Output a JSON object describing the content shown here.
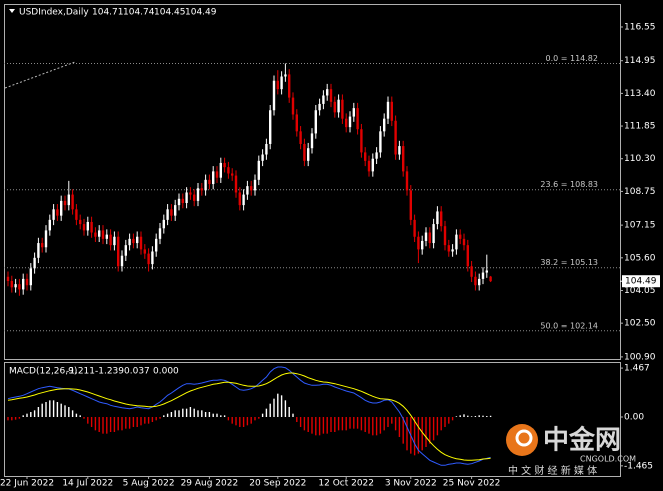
{
  "chart_data": {
    "type": "candlestick",
    "symbol": "USDIndex,Daily",
    "up_color": "#ffffff",
    "down_color": "#e00000",
    "ylim": [
      100.8,
      117.64
    ],
    "yticks": [
      116.55,
      114.95,
      {
        "value": 113.4,
        "label": "113.40"
      },
      111.85,
      {
        "value": 110.3,
        "label": "110.30"
      },
      108.75,
      107.15,
      {
        "value": 105.6,
        "label": "105.60"
      },
      104.05,
      {
        "value": 102.5,
        "label": "102.50"
      },
      {
        "value": 100.9,
        "label": "100.90"
      }
    ],
    "fib_levels": [
      {
        "value": 114.82,
        "label": "0.0 = 114.82"
      },
      {
        "value": 108.83,
        "label": "23.6 = 108.83"
      },
      {
        "value": 105.13,
        "label": "38.2 = 105.13"
      },
      {
        "value": 102.14,
        "label": "50.0 = 102.14"
      }
    ],
    "xticks": [
      {
        "value": 5,
        "label": "22 Jun 2022"
      },
      {
        "value": 21,
        "label": "14 Jul 2022"
      },
      {
        "value": 37,
        "label": "5 Aug 2022"
      },
      {
        "value": 53,
        "label": "29 Aug 2022"
      },
      {
        "value": 71,
        "label": "20 Sep 2022"
      },
      {
        "value": 89,
        "label": "12 Oct 2022"
      },
      {
        "value": 106,
        "label": "3 Nov 2022"
      },
      {
        "value": 122,
        "label": "25 Nov 2022"
      }
    ],
    "ohlc": [
      [
        104.7,
        104.95,
        104.25,
        104.5
      ],
      [
        104.5,
        104.75,
        103.95,
        104.2
      ],
      [
        104.2,
        104.6,
        103.95,
        104.35
      ],
      [
        104.35,
        104.6,
        103.8,
        104.1
      ],
      [
        104.1,
        104.85,
        103.85,
        104.6
      ],
      [
        104.6,
        104.85,
        104.05,
        104.3
      ],
      [
        104.3,
        105.35,
        104.05,
        105.1
      ],
      [
        105.1,
        105.85,
        104.85,
        105.6
      ],
      [
        105.6,
        106.55,
        105.35,
        106.3
      ],
      [
        106.3,
        106.55,
        105.85,
        106.1
      ],
      [
        106.1,
        107.15,
        105.85,
        106.9
      ],
      [
        106.9,
        107.65,
        106.65,
        107.4
      ],
      [
        107.4,
        108.15,
        107.15,
        107.9
      ],
      [
        107.9,
        108.15,
        107.35,
        107.6
      ],
      [
        107.6,
        108.55,
        107.35,
        108.3
      ],
      [
        108.3,
        108.55,
        107.85,
        108.1
      ],
      [
        108.1,
        109.25,
        107.85,
        108.6
      ],
      [
        108.6,
        108.85,
        107.65,
        107.9
      ],
      [
        107.9,
        108.15,
        107.15,
        107.4
      ],
      [
        107.4,
        107.65,
        106.95,
        107.2
      ],
      [
        107.2,
        107.45,
        106.65,
        106.9
      ],
      [
        106.9,
        107.55,
        106.65,
        107.3
      ],
      [
        107.3,
        107.55,
        106.55,
        106.8
      ],
      [
        106.8,
        107.05,
        106.35,
        106.6
      ],
      [
        106.6,
        107.15,
        106.35,
        106.9
      ],
      [
        106.9,
        107.15,
        106.25,
        106.5
      ],
      [
        106.5,
        106.95,
        106.25,
        106.7
      ],
      [
        106.7,
        106.95,
        105.95,
        106.2
      ],
      [
        106.2,
        106.85,
        105.95,
        106.6
      ],
      [
        106.6,
        106.85,
        104.95,
        105.2
      ],
      [
        105.2,
        105.95,
        104.95,
        105.7
      ],
      [
        105.7,
        106.45,
        105.45,
        106.2
      ],
      [
        106.2,
        106.75,
        105.95,
        106.5
      ],
      [
        106.5,
        106.75,
        106.05,
        106.3
      ],
      [
        106.3,
        106.85,
        106.05,
        106.6
      ],
      [
        106.6,
        106.85,
        105.75,
        106.0
      ],
      [
        106.0,
        106.25,
        105.55,
        105.8
      ],
      [
        105.8,
        106.05,
        104.95,
        105.3
      ],
      [
        105.3,
        106.15,
        105.05,
        105.9
      ],
      [
        105.9,
        106.75,
        105.65,
        106.5
      ],
      [
        106.5,
        107.25,
        106.25,
        107.0
      ],
      [
        107.0,
        107.65,
        106.75,
        107.4
      ],
      [
        107.4,
        108.15,
        107.15,
        107.9
      ],
      [
        107.9,
        108.15,
        107.35,
        107.6
      ],
      [
        107.6,
        108.35,
        107.35,
        108.1
      ],
      [
        108.1,
        108.65,
        107.85,
        108.4
      ],
      [
        108.4,
        108.65,
        107.95,
        108.2
      ],
      [
        108.2,
        108.95,
        107.95,
        108.7
      ],
      [
        108.7,
        108.95,
        108.35,
        108.6
      ],
      [
        108.6,
        108.85,
        108.05,
        108.3
      ],
      [
        108.3,
        109.15,
        108.05,
        108.9
      ],
      [
        108.9,
        109.15,
        108.55,
        108.8
      ],
      [
        108.8,
        109.55,
        108.55,
        109.3
      ],
      [
        109.3,
        109.55,
        108.85,
        109.1
      ],
      [
        109.1,
        109.95,
        108.85,
        109.7
      ],
      [
        109.7,
        109.95,
        109.15,
        109.4
      ],
      [
        109.4,
        110.35,
        109.15,
        110.1
      ],
      [
        110.1,
        110.35,
        109.65,
        109.9
      ],
      [
        109.9,
        110.15,
        109.35,
        109.6
      ],
      [
        109.6,
        109.85,
        109.25,
        109.5
      ],
      [
        109.5,
        109.75,
        108.45,
        108.7
      ],
      [
        108.7,
        108.95,
        107.85,
        108.1
      ],
      [
        108.1,
        108.85,
        107.85,
        108.6
      ],
      [
        108.6,
        109.25,
        108.35,
        109.0
      ],
      [
        109.0,
        109.25,
        108.55,
        108.8
      ],
      [
        108.8,
        109.55,
        108.55,
        109.3
      ],
      [
        109.3,
        110.45,
        109.05,
        110.2
      ],
      [
        110.2,
        110.75,
        109.95,
        110.5
      ],
      [
        110.5,
        111.25,
        110.25,
        111.0
      ],
      [
        111.0,
        112.85,
        110.75,
        112.6
      ],
      [
        112.6,
        114.25,
        112.35,
        114.0
      ],
      [
        114.0,
        114.5,
        113.35,
        113.6
      ],
      [
        113.6,
        114.45,
        113.35,
        114.2
      ],
      [
        114.2,
        114.82,
        113.95,
        114.3
      ],
      [
        114.3,
        114.55,
        112.95,
        113.2
      ],
      [
        113.2,
        113.45,
        112.15,
        112.4
      ],
      [
        112.4,
        112.65,
        111.35,
        111.6
      ],
      [
        111.6,
        111.85,
        110.75,
        111.0
      ],
      [
        111.0,
        111.25,
        109.95,
        110.2
      ],
      [
        110.2,
        111.05,
        109.95,
        110.8
      ],
      [
        110.8,
        111.75,
        110.55,
        111.5
      ],
      [
        111.5,
        112.85,
        111.25,
        112.6
      ],
      [
        112.6,
        113.15,
        112.35,
        112.9
      ],
      [
        112.9,
        113.55,
        112.65,
        113.3
      ],
      [
        113.3,
        113.85,
        113.05,
        113.6
      ],
      [
        113.6,
        113.85,
        112.75,
        113.0
      ],
      [
        113.0,
        113.25,
        112.25,
        112.5
      ],
      [
        112.5,
        113.35,
        112.25,
        113.1
      ],
      [
        113.1,
        113.35,
        111.95,
        112.2
      ],
      [
        112.2,
        112.45,
        111.55,
        111.8
      ],
      [
        111.8,
        112.55,
        111.55,
        112.3
      ],
      [
        112.3,
        112.95,
        112.05,
        112.7
      ],
      [
        112.7,
        112.95,
        111.45,
        111.7
      ],
      [
        111.7,
        111.95,
        110.35,
        110.6
      ],
      [
        110.6,
        110.85,
        109.95,
        110.2
      ],
      [
        110.2,
        110.45,
        109.45,
        109.7
      ],
      [
        109.7,
        110.55,
        109.45,
        110.3
      ],
      [
        110.3,
        110.85,
        110.05,
        110.6
      ],
      [
        110.6,
        111.85,
        110.35,
        111.6
      ],
      [
        111.6,
        112.45,
        111.35,
        112.2
      ],
      [
        112.2,
        113.25,
        111.95,
        113.0
      ],
      [
        113.0,
        113.25,
        111.85,
        112.1
      ],
      [
        112.1,
        112.35,
        110.25,
        110.5
      ],
      [
        110.5,
        111.15,
        110.25,
        110.9
      ],
      [
        110.9,
        111.15,
        109.45,
        109.7
      ],
      [
        109.7,
        109.95,
        108.55,
        108.8
      ],
      [
        108.8,
        109.05,
        107.15,
        107.4
      ],
      [
        107.4,
        107.65,
        106.35,
        106.6
      ],
      [
        106.6,
        106.85,
        105.35,
        106.0
      ],
      [
        106.0,
        106.65,
        105.75,
        106.4
      ],
      [
        106.4,
        107.05,
        106.15,
        106.8
      ],
      [
        106.8,
        107.05,
        106.05,
        106.3
      ],
      [
        106.3,
        107.45,
        106.05,
        107.2
      ],
      [
        107.2,
        108.05,
        106.95,
        107.8
      ],
      [
        107.8,
        108.05,
        106.85,
        107.1
      ],
      [
        107.1,
        107.35,
        105.95,
        106.2
      ],
      [
        106.2,
        106.45,
        105.65,
        105.9
      ],
      [
        105.9,
        106.25,
        105.65,
        106.0
      ],
      [
        106.0,
        106.95,
        105.75,
        106.7
      ],
      [
        106.7,
        106.95,
        106.25,
        106.5
      ],
      [
        106.5,
        106.75,
        105.95,
        106.2
      ],
      [
        106.2,
        106.45,
        104.95,
        105.2
      ],
      [
        105.2,
        105.45,
        104.45,
        104.7
      ],
      [
        104.7,
        104.95,
        104.05,
        104.3
      ],
      [
        104.3,
        104.85,
        104.05,
        104.6
      ],
      [
        104.6,
        105.15,
        104.35,
        104.9
      ],
      [
        104.9,
        105.75,
        104.65,
        105.0
      ],
      [
        104.71,
        104.74,
        104.45,
        104.49
      ]
    ],
    "indicator": {
      "type": "macd",
      "title": "MACD(12,26,9)",
      "readout": [
        -1.211,
        -1.239,
        0.037,
        {
          "value": 0,
          "label": "0.000"
        }
      ],
      "ylim": [
        -1.77,
        1.65
      ],
      "yticks": [
        1.467,
        {
          "value": 0,
          "label": "0.00"
        },
        -1.465
      ],
      "main": {
        "color": "#2f5bff",
        "values": [
          0.55,
          0.58,
          0.6,
          0.62,
          0.65,
          0.7,
          0.75,
          0.8,
          0.85,
          0.88,
          0.9,
          0.92,
          0.9,
          0.88,
          0.86,
          0.85,
          0.84,
          0.8,
          0.75,
          0.7,
          0.65,
          0.6,
          0.55,
          0.5,
          0.45,
          0.42,
          0.4,
          0.35,
          0.32,
          0.3,
          0.28,
          0.26,
          0.25,
          0.27,
          0.3,
          0.28,
          0.26,
          0.25,
          0.3,
          0.38,
          0.45,
          0.55,
          0.65,
          0.72,
          0.8,
          0.88,
          0.95,
          1.0,
          1.0,
          0.98,
          1.0,
          1.02,
          1.05,
          1.08,
          1.1,
          1.1,
          1.12,
          1.1,
          1.05,
          0.98,
          0.9,
          0.82,
          0.8,
          0.82,
          0.85,
          0.9,
          1.0,
          1.1,
          1.2,
          1.35,
          1.45,
          1.5,
          1.5,
          1.48,
          1.4,
          1.3,
          1.2,
          1.1,
          1.02,
          0.98,
          0.95,
          0.95,
          0.96,
          0.98,
          0.98,
          0.95,
          0.9,
          0.86,
          0.82,
          0.78,
          0.75,
          0.72,
          0.65,
          0.58,
          0.5,
          0.45,
          0.42,
          0.42,
          0.45,
          0.5,
          0.52,
          0.45,
          0.3,
          0.15,
          -0.05,
          -0.3,
          -0.55,
          -0.8,
          -1.0,
          -1.1,
          -1.2,
          -1.3,
          -1.35,
          -1.4,
          -1.45,
          -1.45,
          -1.42,
          -1.4,
          -1.38,
          -1.38,
          -1.4,
          -1.42,
          -1.4,
          -1.36,
          -1.32,
          -1.27,
          -1.24,
          -1.211
        ]
      },
      "signal": {
        "color": "#ffff00",
        "values": [
          0.5,
          0.52,
          0.54,
          0.56,
          0.58,
          0.6,
          0.63,
          0.66,
          0.7,
          0.73,
          0.76,
          0.79,
          0.81,
          0.83,
          0.84,
          0.85,
          0.85,
          0.84,
          0.83,
          0.81,
          0.78,
          0.75,
          0.71,
          0.67,
          0.63,
          0.59,
          0.55,
          0.52,
          0.48,
          0.45,
          0.42,
          0.39,
          0.37,
          0.35,
          0.34,
          0.33,
          0.32,
          0.31,
          0.31,
          0.32,
          0.35,
          0.39,
          0.44,
          0.49,
          0.55,
          0.61,
          0.67,
          0.73,
          0.78,
          0.82,
          0.86,
          0.89,
          0.92,
          0.95,
          0.98,
          1.0,
          1.02,
          1.04,
          1.04,
          1.03,
          1.01,
          0.98,
          0.95,
          0.93,
          0.92,
          0.92,
          0.93,
          0.96,
          1.0,
          1.06,
          1.13,
          1.2,
          1.26,
          1.3,
          1.32,
          1.32,
          1.3,
          1.27,
          1.23,
          1.18,
          1.14,
          1.1,
          1.07,
          1.05,
          1.04,
          1.02,
          1.0,
          0.97,
          0.94,
          0.91,
          0.88,
          0.85,
          0.81,
          0.77,
          0.72,
          0.67,
          0.62,
          0.58,
          0.55,
          0.54,
          0.53,
          0.51,
          0.47,
          0.41,
          0.32,
          0.2,
          0.05,
          -0.12,
          -0.3,
          -0.46,
          -0.6,
          -0.74,
          -0.86,
          -0.97,
          -1.06,
          -1.13,
          -1.18,
          -1.22,
          -1.25,
          -1.27,
          -1.29,
          -1.3,
          -1.3,
          -1.29,
          -1.28,
          -1.26,
          -1.25,
          -1.239
        ]
      },
      "histogram": {
        "up_color": "#ffffff",
        "down_color": "#e00000",
        "values": [
          -0.1,
          -0.1,
          -0.08,
          -0.05,
          0.05,
          0.1,
          0.15,
          0.2,
          0.3,
          0.4,
          0.45,
          0.5,
          0.5,
          0.45,
          0.4,
          0.35,
          0.3,
          0.2,
          0.1,
          0.05,
          -0.05,
          -0.2,
          -0.3,
          -0.4,
          -0.45,
          -0.5,
          -0.5,
          -0.45,
          -0.45,
          -0.4,
          -0.4,
          -0.35,
          -0.35,
          -0.3,
          -0.3,
          -0.25,
          -0.2,
          -0.2,
          -0.15,
          -0.1,
          -0.05,
          0.05,
          0.1,
          0.15,
          0.2,
          0.2,
          0.25,
          0.25,
          0.3,
          0.25,
          0.2,
          0.2,
          0.15,
          0.15,
          0.1,
          0.1,
          0.05,
          0.05,
          -0.1,
          -0.2,
          -0.25,
          -0.3,
          -0.3,
          -0.25,
          -0.2,
          -0.1,
          -0.05,
          0.1,
          0.25,
          0.4,
          0.55,
          0.7,
          0.65,
          0.5,
          0.3,
          0.1,
          -0.15,
          -0.3,
          -0.4,
          -0.45,
          -0.5,
          -0.55,
          -0.55,
          -0.5,
          -0.5,
          -0.45,
          -0.45,
          -0.4,
          -0.4,
          -0.4,
          -0.35,
          -0.35,
          -0.35,
          -0.4,
          -0.45,
          -0.5,
          -0.55,
          -0.55,
          -0.5,
          -0.4,
          -0.3,
          -0.2,
          -0.4,
          -0.6,
          -0.8,
          -1.0,
          -1.1,
          -1.15,
          -1.1,
          -1.0,
          -0.9,
          -0.8,
          -0.7,
          -0.55,
          -0.4,
          -0.3,
          -0.2,
          -0.1,
          0.02,
          0.05,
          0.08,
          0.04,
          0.02,
          0.03,
          0.05,
          0.04,
          0.03,
          0.037
        ]
      }
    },
    "watermark": {
      "name": "中金网",
      "site": "CNGOLD.COM",
      "slogan": "中 文 财 经 新 媒 体"
    }
  }
}
